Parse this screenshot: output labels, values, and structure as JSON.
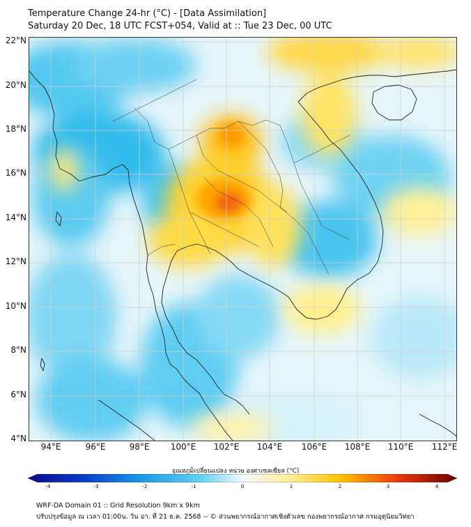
{
  "header": {
    "title": "Temperature Change 24-hr (°C) - [Data Assimilation]",
    "subtitle": "Saturday 20 Dec, 18 UTC FCST+054, Valid at :: Tue 23 Dec, 00 UTC"
  },
  "map": {
    "lat_labels": [
      "22°N",
      "20°N",
      "18°N",
      "16°N",
      "14°N",
      "12°N",
      "10°N",
      "8°N",
      "6°N",
      "4°N"
    ],
    "lon_labels": [
      "94°E",
      "96°E",
      "98°E",
      "100°E",
      "102°E",
      "104°E",
      "106°E",
      "108°E",
      "110°E",
      "112°E"
    ]
  },
  "colorbar": {
    "title": "อุณหภูมิเปลี่ยนแปลง หน่วย องศาเซลเซียส (°C)",
    "ticks": [
      "-4",
      "-3",
      "-2",
      "-1",
      "0",
      "1",
      "2",
      "3",
      "4"
    ]
  },
  "footer": {
    "line1": "WRF-DA Domain 01 :: Grid Resolution 9km x 9km",
    "line2": "ปรับปรุงข้อมูล ณ เวลา 01:00น. วัน อา. ที่ 21 ธ.ค. 2568 -- © ส่วนพยากรณ์อากาศเชิงตัวเลข กองพยากรณ์อากาศ กรมอุตุนิยมวิทยา"
  },
  "colors": {
    "cold": "#1ab0e8",
    "cool": "#8dd8f3",
    "neutral": "#e9f6fa",
    "warm": "#ffe566",
    "hot": "#ffb300",
    "max": "#ee4a0a"
  }
}
